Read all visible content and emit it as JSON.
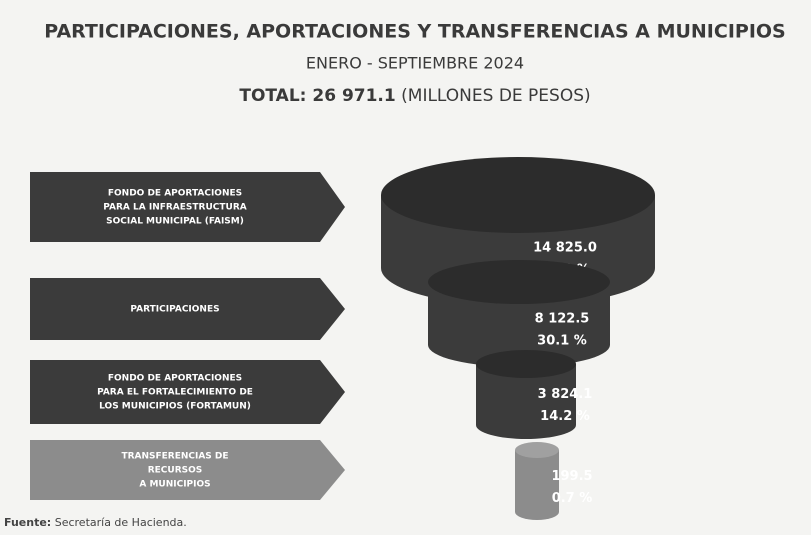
{
  "chart_data": {
    "type": "funnel",
    "title": "PARTICIPACIONES, APORTACIONES Y TRANSFERENCIAS A MUNICIPIOS",
    "subtitle": "ENERO - SEPTIEMBRE 2024",
    "total_label": "TOTAL: 26 971.1",
    "total_units": "(MILLONES DE PESOS)",
    "categories": [
      [
        "FONDO DE APORTACIONES",
        "PARA LA INFRAESTRUCTURA",
        "SOCIAL MUNICIPAL (FAISM)"
      ],
      [
        "PARTICIPACIONES"
      ],
      [
        "FONDO DE APORTACIONES",
        "PARA EL FORTALECIMIENTO DE",
        "LOS MUNICIPIOS (FORTAMUN)"
      ],
      [
        "TRANSFERENCIAS DE",
        "RECURSOS",
        "A MUNICIPIOS"
      ]
    ],
    "values": [
      14825.0,
      8122.5,
      3824.1,
      199.5
    ],
    "value_labels": [
      "14 825.0",
      "8 122.5",
      "3 824.1",
      "199.5"
    ],
    "percentages": [
      55.0,
      30.1,
      14.2,
      0.7
    ],
    "percentage_labels": [
      "55.0 %",
      "30.1 %",
      "14.2 %",
      "0.7 %"
    ],
    "colors": [
      "#3b3b3b",
      "#3b3b3b",
      "#3b3b3b",
      "#8c8c8c"
    ],
    "source_label": "Fuente:",
    "source": "Secretaría de Hacienda."
  }
}
